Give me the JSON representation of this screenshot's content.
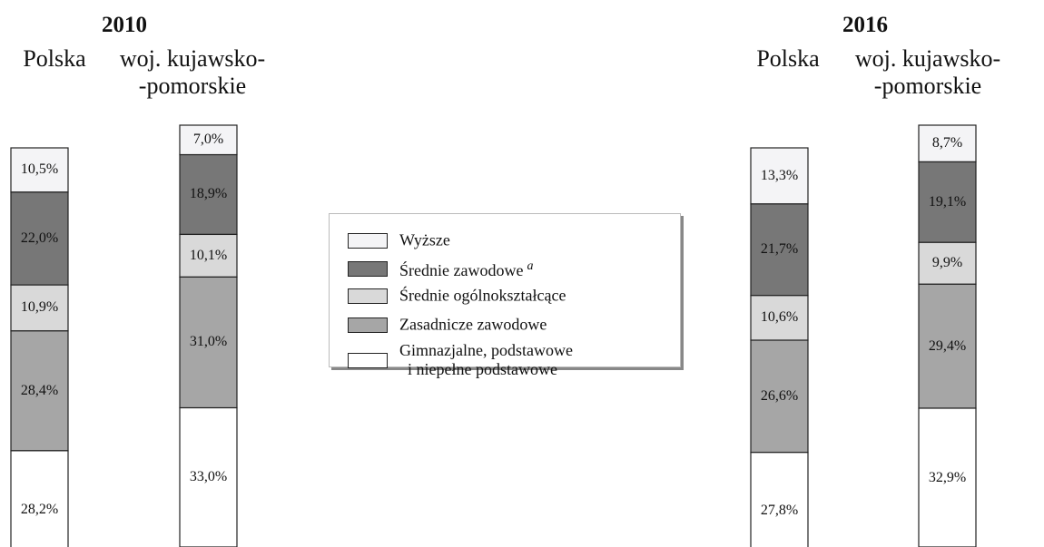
{
  "chart_data": [
    {
      "type": "bar",
      "stacked": true,
      "title": "2010",
      "categories": [
        "Polska",
        "woj. kujawsko-\n-pomorskie"
      ],
      "series": [
        {
          "name": "Wyższe",
          "color": "#f4f4f6",
          "values": [
            10.5,
            7.0
          ],
          "value_labels": [
            "10,5%",
            "7,0%"
          ]
        },
        {
          "name": "Średnie zawodowe",
          "footnote_mark": "a",
          "color": "#777777",
          "values": [
            22.0,
            18.9
          ],
          "value_labels": [
            "22,0%",
            "18,9%"
          ]
        },
        {
          "name": "Średnie ogólnokształcące",
          "color": "#d9d9d9",
          "values": [
            10.9,
            10.1
          ],
          "value_labels": [
            "10,9%",
            "10,1%"
          ]
        },
        {
          "name": "Zasadnicze zawodowe",
          "color": "#a6a6a6",
          "values": [
            28.4,
            31.0
          ],
          "value_labels": [
            "28,4%",
            "31,0%"
          ]
        },
        {
          "name": "Gimnazjalne, podstawowe\n  i niepełne podstawowe",
          "color": "#ffffff",
          "values": [
            28.2,
            33.0
          ],
          "value_labels": [
            "28,2%",
            "33,0%"
          ]
        }
      ]
    },
    {
      "type": "bar",
      "stacked": true,
      "title": "2016",
      "categories": [
        "Polska",
        "woj. kujawsko-\n-pomorskie"
      ],
      "series": [
        {
          "name": "Wyższe",
          "color": "#f4f4f6",
          "values": [
            13.3,
            8.7
          ],
          "value_labels": [
            "13,3%",
            "8,7%"
          ]
        },
        {
          "name": "Średnie zawodowe",
          "color": "#777777",
          "values": [
            21.7,
            19.1
          ],
          "value_labels": [
            "21,7%",
            "19,1%"
          ]
        },
        {
          "name": "Średnie ogólnokształcące",
          "color": "#d9d9d9",
          "values": [
            10.6,
            9.9
          ],
          "value_labels": [
            "10,6%",
            "9,9%"
          ]
        },
        {
          "name": "Zasadnicze zawodowe",
          "color": "#a6a6a6",
          "values": [
            26.6,
            29.4
          ],
          "value_labels": [
            "26,6%",
            "29,4%"
          ]
        },
        {
          "name": "Gimnazjalne, podstawowe\n  i niepełne podstawowe",
          "color": "#ffffff",
          "values": [
            27.8,
            32.9
          ],
          "value_labels": [
            "27,8%",
            "32,9%"
          ]
        }
      ]
    }
  ]
}
